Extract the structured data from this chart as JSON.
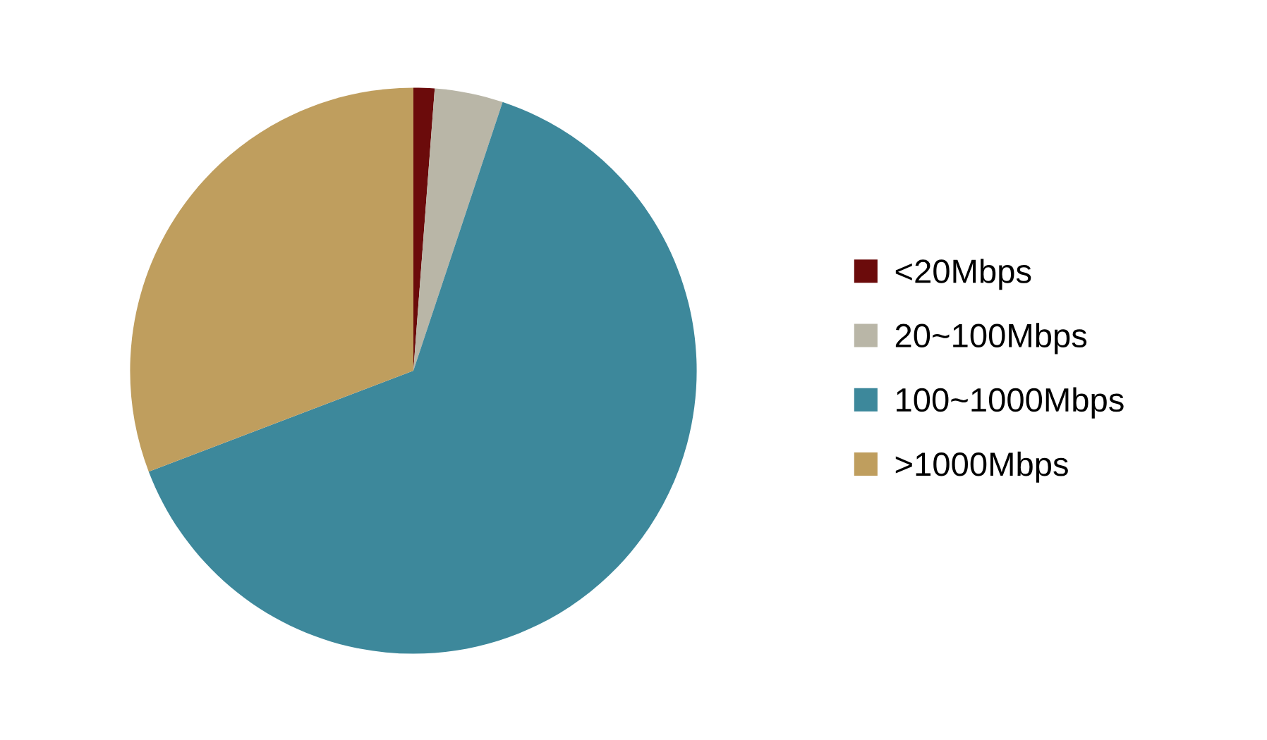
{
  "chart_data": {
    "type": "pie",
    "categories": [
      "<20Mbps",
      "20~100Mbps",
      "100~1000Mbps",
      ">1000Mbps"
    ],
    "values": [
      1.2,
      3.9,
      64.1,
      30.8
    ],
    "colors": [
      "#6b0b0b",
      "#b9b6a7",
      "#3d889b",
      "#bf9e5e"
    ],
    "legend": "right"
  }
}
